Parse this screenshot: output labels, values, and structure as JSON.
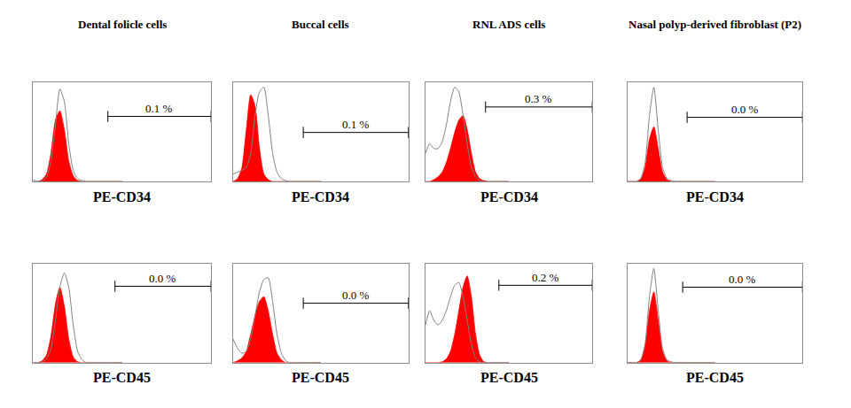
{
  "chart_data": [
    {
      "type": "line",
      "title": "Dental folicle cells",
      "xlabel": "PE-CD34",
      "tick_labels": false,
      "xlim": [
        0,
        100
      ],
      "ylim": [
        0,
        105
      ],
      "x": [
        0,
        2.5,
        5,
        7.5,
        10,
        12.5,
        15,
        17.5,
        20,
        22.5,
        25,
        27.5,
        30,
        32.5,
        35,
        37.5,
        40,
        42.5,
        45,
        47.5,
        50
      ],
      "series": [
        {
          "type": "area",
          "color": "#ff0000",
          "values": [
            0,
            0,
            2,
            8,
            30,
            65,
            75,
            55,
            22,
            6,
            1,
            0,
            0,
            0,
            0,
            0,
            0,
            0,
            0,
            0,
            0
          ]
        },
        {
          "type": "line",
          "color": "#808080",
          "values": [
            2,
            0,
            1,
            5,
            22,
            60,
            98,
            85,
            40,
            12,
            3,
            1,
            0,
            0,
            0,
            0,
            0,
            0,
            0,
            0,
            0
          ]
        }
      ],
      "gate": {
        "x": [
          42,
          100
        ],
        "y": 69,
        "label": "0.1 %"
      }
    },
    {
      "type": "line",
      "title": "Buccal cells",
      "xlabel": "PE-CD34",
      "tick_labels": false,
      "xlim": [
        0,
        100
      ],
      "ylim": [
        0,
        105
      ],
      "x": [
        0,
        2.5,
        5,
        7.5,
        10,
        12.5,
        15,
        17.5,
        20,
        22.5,
        25,
        27.5,
        30,
        32.5,
        35,
        37.5,
        40,
        42.5,
        45,
        47.5,
        50
      ],
      "series": [
        {
          "type": "area",
          "color": "#ff0000",
          "values": [
            0,
            3,
            15,
            55,
            92,
            80,
            35,
            8,
            2,
            0,
            0,
            0,
            0,
            0,
            0,
            0,
            0,
            0,
            0,
            0,
            0
          ]
        },
        {
          "type": "line",
          "color": "#808080",
          "values": [
            8,
            10,
            12,
            15,
            30,
            70,
            95,
            100,
            70,
            30,
            10,
            3,
            1,
            0,
            0,
            0,
            0,
            0,
            0,
            0,
            0
          ]
        }
      ],
      "gate": {
        "x": [
          40,
          100
        ],
        "y": 52,
        "label": "0.1 %"
      }
    },
    {
      "type": "line",
      "title": "RNL ADS cells",
      "xlabel": "PE-CD34",
      "tick_labels": false,
      "xlim": [
        0,
        100
      ],
      "ylim": [
        0,
        105
      ],
      "x": [
        0,
        2.5,
        5,
        7.5,
        10,
        12.5,
        15,
        17.5,
        20,
        22.5,
        25,
        27.5,
        30,
        32.5,
        35,
        37.5,
        40,
        42.5,
        45,
        47.5,
        50
      ],
      "series": [
        {
          "type": "area",
          "color": "#ff0000",
          "values": [
            0,
            0,
            2,
            5,
            10,
            20,
            35,
            52,
            65,
            70,
            55,
            30,
            10,
            3,
            1,
            0,
            0,
            0,
            0,
            0,
            0
          ]
        },
        {
          "type": "line",
          "color": "#808080",
          "values": [
            30,
            40,
            35,
            35,
            42,
            60,
            85,
            100,
            95,
            70,
            40,
            15,
            5,
            1,
            0,
            0,
            0,
            0,
            0,
            0,
            0
          ]
        }
      ],
      "gate": {
        "x": [
          36,
          100
        ],
        "y": 79,
        "label": "0.3 %"
      }
    },
    {
      "type": "line",
      "title": "Nasal polyp-derived fibroblast (P2)",
      "xlabel": "PE-CD34",
      "tick_labels": false,
      "xlim": [
        0,
        100
      ],
      "ylim": [
        0,
        105
      ],
      "x": [
        0,
        2.5,
        5,
        7.5,
        10,
        12.5,
        15,
        17.5,
        20,
        22.5,
        25,
        27.5,
        30,
        32.5,
        35,
        37.5,
        40,
        42.5,
        45,
        47.5,
        50
      ],
      "series": [
        {
          "type": "area",
          "color": "#ff0000",
          "values": [
            0,
            0,
            0,
            3,
            15,
            45,
            58,
            35,
            10,
            2,
            0,
            0,
            0,
            0,
            0,
            0,
            0,
            0,
            0,
            0,
            0
          ]
        },
        {
          "type": "line",
          "color": "#808080",
          "values": [
            0,
            0,
            0,
            3,
            20,
            70,
            100,
            55,
            15,
            3,
            1,
            0,
            0,
            0,
            0,
            0,
            0,
            0,
            0,
            0,
            0
          ]
        }
      ],
      "gate": {
        "x": [
          34,
          100
        ],
        "y": 68,
        "label": "0.0 %"
      }
    },
    {
      "type": "line",
      "xlabel": "PE-CD45",
      "tick_labels": false,
      "xlim": [
        0,
        100
      ],
      "ylim": [
        0,
        105
      ],
      "x": [
        0,
        2.5,
        5,
        7.5,
        10,
        12.5,
        15,
        17.5,
        20,
        22.5,
        25,
        27.5,
        30,
        32.5,
        35,
        37.5,
        40,
        42.5,
        45,
        47.5,
        50
      ],
      "series": [
        {
          "type": "area",
          "color": "#ff0000",
          "values": [
            0,
            0,
            2,
            8,
            28,
            62,
            80,
            60,
            25,
            6,
            1,
            0,
            0,
            0,
            0,
            0,
            0,
            0,
            0,
            0,
            0
          ]
        },
        {
          "type": "line",
          "color": "#808080",
          "values": [
            0,
            0,
            1,
            4,
            15,
            45,
            80,
            95,
            80,
            40,
            12,
            3,
            0,
            0,
            0,
            0,
            0,
            0,
            0,
            0,
            0
          ]
        }
      ],
      "gate": {
        "x": [
          46,
          100
        ],
        "y": 81,
        "label": "0.0 %"
      }
    },
    {
      "type": "line",
      "xlabel": "PE-CD45",
      "tick_labels": false,
      "xlim": [
        0,
        100
      ],
      "ylim": [
        0,
        105
      ],
      "x": [
        0,
        2.5,
        5,
        7.5,
        10,
        12.5,
        15,
        17.5,
        20,
        22.5,
        25,
        27.5,
        30,
        32.5,
        35,
        37.5,
        40,
        42.5,
        45,
        47.5,
        50
      ],
      "series": [
        {
          "type": "area",
          "color": "#ff0000",
          "values": [
            0,
            2,
            5,
            12,
            30,
            50,
            65,
            70,
            55,
            30,
            10,
            3,
            0,
            0,
            0,
            0,
            0,
            0,
            0,
            0,
            0
          ]
        },
        {
          "type": "line",
          "color": "#808080",
          "values": [
            25,
            15,
            10,
            12,
            25,
            50,
            75,
            88,
            90,
            65,
            30,
            10,
            2,
            0,
            0,
            0,
            0,
            0,
            0,
            0,
            0
          ]
        }
      ],
      "gate": {
        "x": [
          40,
          100
        ],
        "y": 63,
        "label": "0.0 %"
      }
    },
    {
      "type": "line",
      "xlabel": "PE-CD45",
      "tick_labels": false,
      "xlim": [
        0,
        100
      ],
      "ylim": [
        0,
        105
      ],
      "x": [
        0,
        2.5,
        5,
        7.5,
        10,
        12.5,
        15,
        17.5,
        20,
        22.5,
        25,
        27.5,
        30,
        32.5,
        35,
        37.5,
        40,
        42.5,
        45,
        47.5,
        50
      ],
      "series": [
        {
          "type": "area",
          "color": "#ff0000",
          "values": [
            0,
            0,
            0,
            0,
            1,
            4,
            12,
            30,
            55,
            80,
            92,
            70,
            30,
            8,
            1,
            0,
            0,
            0,
            0,
            0,
            0
          ]
        },
        {
          "type": "line",
          "color": "#808080",
          "values": [
            40,
            55,
            45,
            40,
            45,
            55,
            70,
            82,
            85,
            70,
            45,
            20,
            5,
            1,
            0,
            0,
            0,
            0,
            0,
            0,
            0
          ]
        }
      ],
      "gate": {
        "x": [
          44,
          100
        ],
        "y": 82,
        "label": "0.2 %"
      }
    },
    {
      "type": "line",
      "xlabel": "PE-CD45",
      "tick_labels": false,
      "xlim": [
        0,
        100
      ],
      "ylim": [
        0,
        105
      ],
      "x": [
        0,
        2.5,
        5,
        7.5,
        10,
        12.5,
        15,
        17.5,
        20,
        22.5,
        25,
        27.5,
        30,
        32.5,
        35,
        37.5,
        40,
        42.5,
        45,
        47.5,
        50
      ],
      "series": [
        {
          "type": "area",
          "color": "#ff0000",
          "values": [
            0,
            0,
            0,
            3,
            18,
            55,
            75,
            45,
            12,
            2,
            0,
            0,
            0,
            0,
            0,
            0,
            0,
            0,
            0,
            0,
            0
          ]
        },
        {
          "type": "line",
          "color": "#808080",
          "values": [
            0,
            0,
            0,
            3,
            20,
            70,
            100,
            55,
            15,
            3,
            1,
            0,
            0,
            0,
            0,
            0,
            0,
            0,
            0,
            0,
            0
          ]
        }
      ],
      "gate": {
        "x": [
          31.5,
          100
        ],
        "y": 80,
        "label": "0.0 %"
      }
    }
  ]
}
